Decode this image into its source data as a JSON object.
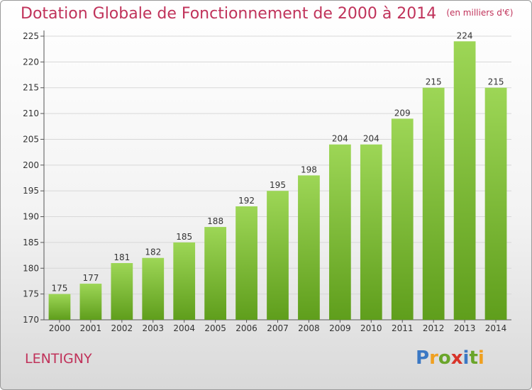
{
  "title": "Dotation Globale de Fonctionnement de 2000 à 2014",
  "unit": "(en milliers d'€)",
  "commune": "LENTIGNY",
  "logo": {
    "letters": [
      "P",
      "r",
      "o",
      "x",
      "i",
      "t",
      "i"
    ],
    "colors": [
      "#3b78c4",
      "#f0a020",
      "#6aa52a",
      "#d8342a",
      "#3b78c4",
      "#6aa52a",
      "#f0a020"
    ]
  },
  "colors": {
    "title": "#c0325a",
    "bar_top": "#9dd656",
    "bar_bottom": "#5f9e1c",
    "grid": "#d8d8d8"
  },
  "chart_data": {
    "type": "bar",
    "title": "Dotation Globale de Fonctionnement de 2000 à 2014",
    "xlabel": "",
    "ylabel": "",
    "categories": [
      "2000",
      "2001",
      "2002",
      "2003",
      "2004",
      "2005",
      "2006",
      "2007",
      "2008",
      "2009",
      "2010",
      "2011",
      "2012",
      "2013",
      "2014"
    ],
    "values": [
      175,
      177,
      181,
      182,
      185,
      188,
      192,
      195,
      198,
      204,
      204,
      209,
      215,
      224,
      215
    ],
    "ylim": [
      170,
      225
    ],
    "yticks": [
      170,
      175,
      180,
      185,
      190,
      195,
      200,
      205,
      210,
      215,
      220,
      225
    ],
    "grid": true,
    "legend": "none"
  }
}
